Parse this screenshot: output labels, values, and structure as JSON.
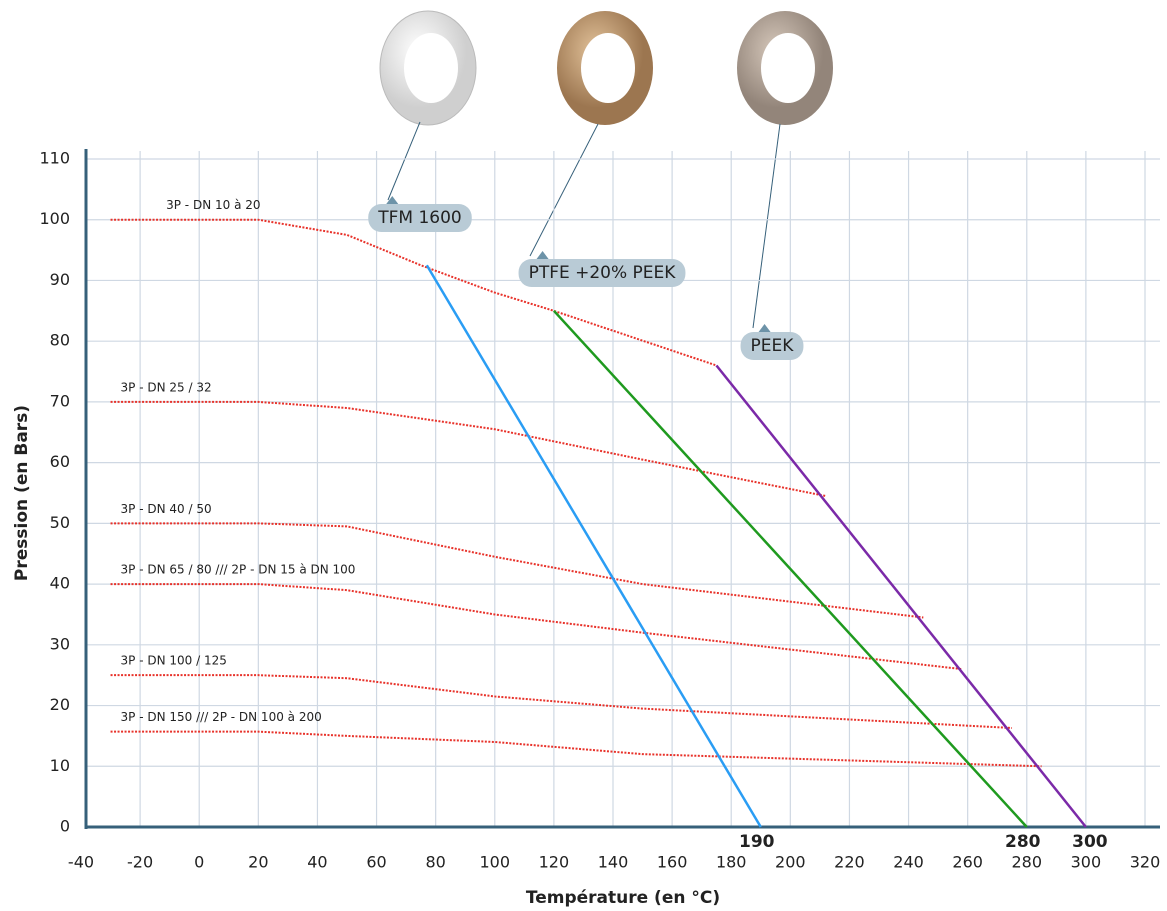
{
  "chart_data": {
    "type": "line",
    "x_label": "Température (en °C)",
    "y_label": "Pression (en Bars)",
    "xlim": [
      -40,
      320
    ],
    "ylim": [
      0,
      110
    ],
    "xticks": [
      -40,
      -20,
      0,
      20,
      40,
      60,
      80,
      100,
      120,
      140,
      160,
      180,
      200,
      220,
      240,
      260,
      280,
      300,
      320
    ],
    "yticks": [
      0,
      10,
      20,
      30,
      40,
      50,
      60,
      70,
      80,
      90,
      100,
      110
    ],
    "grid": true,
    "series": [
      {
        "name": "3P - DN 10 à 20",
        "color": "#e8322a",
        "style": "dotted",
        "x": [
          -30,
          20,
          50,
          75,
          100,
          120,
          175
        ],
        "values": [
          100,
          100,
          97.5,
          92.5,
          88,
          85,
          76
        ]
      },
      {
        "name": "3P - DN 25 / 32",
        "color": "#e8322a",
        "style": "dotted",
        "x": [
          -30,
          20,
          50,
          100,
          150,
          212
        ],
        "values": [
          70,
          70,
          69,
          65.5,
          60.5,
          54.5
        ]
      },
      {
        "name": "3P - DN 40 / 50",
        "color": "#e8322a",
        "style": "dotted",
        "x": [
          -30,
          20,
          50,
          100,
          150,
          245
        ],
        "values": [
          50,
          50,
          49.5,
          44.5,
          40,
          34.5
        ]
      },
      {
        "name": "3P - DN 65 / 80 /// 2P - DN 15 à DN 100",
        "color": "#e8322a",
        "style": "dotted",
        "x": [
          -30,
          20,
          50,
          100,
          150,
          258
        ],
        "values": [
          40,
          40,
          39,
          35,
          32,
          26
        ]
      },
      {
        "name": "3P - DN 100 / 125",
        "color": "#e8322a",
        "style": "dotted",
        "x": [
          -30,
          20,
          50,
          100,
          150,
          275
        ],
        "values": [
          25,
          25,
          24.5,
          21.5,
          19.5,
          16.3
        ]
      },
      {
        "name": "3P - DN 150 /// 2P - DN 100 à 200",
        "color": "#e8322a",
        "style": "dotted",
        "x": [
          -30,
          20,
          50,
          100,
          150,
          285
        ],
        "values": [
          15.7,
          15.7,
          15,
          14,
          12,
          10
        ]
      },
      {
        "name": "TFM 1600",
        "color": "#2a9df4",
        "style": "solid",
        "x": [
          77,
          190
        ],
        "values": [
          92.5,
          0
        ]
      },
      {
        "name": "PTFE +20% PEEK",
        "color": "#1f9a1f",
        "style": "solid",
        "x": [
          120,
          280
        ],
        "values": [
          85,
          0
        ]
      },
      {
        "name": "PEEK",
        "color": "#7b2aa8",
        "style": "solid",
        "x": [
          175,
          300
        ],
        "values": [
          76,
          0
        ]
      }
    ]
  }
}
